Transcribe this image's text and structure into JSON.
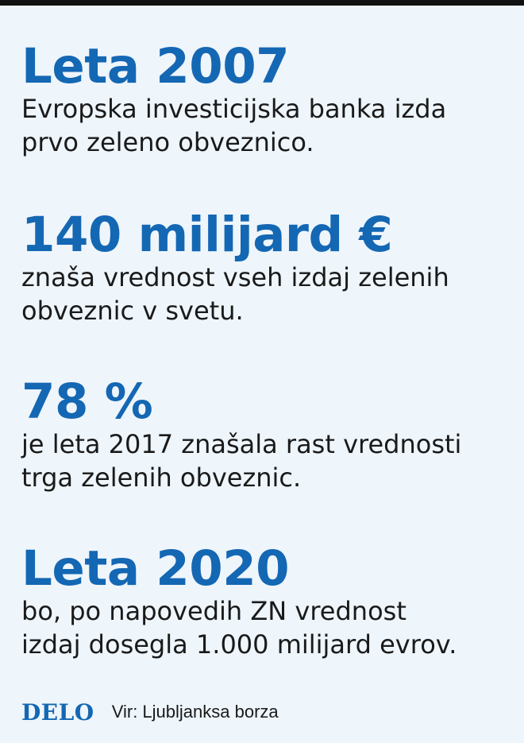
{
  "colors": {
    "accent": "#1467b3",
    "background": "#eef5fb",
    "top_bar": "#111111",
    "text": "#1a1a1a"
  },
  "facts": [
    {
      "headline": "Leta 2007",
      "line1": "Evropska investicijska banka izda",
      "line2": "prvo zeleno obveznico."
    },
    {
      "headline": "140 milijard €",
      "line1": "znaša vrednost vseh izdaj zelenih",
      "line2": "obveznic v svetu."
    },
    {
      "headline": "78 %",
      "line1": "je leta 2017 znašala rast vrednosti",
      "line2": "trga zelenih obveznic."
    },
    {
      "headline": "Leta 2020",
      "line1": "bo, po napovedih ZN vrednost",
      "line2": "izdaj dosegla 1.000 milijard evrov."
    }
  ],
  "footer": {
    "logo": "DELO",
    "source": "Vir: Ljubljanksa borza"
  }
}
